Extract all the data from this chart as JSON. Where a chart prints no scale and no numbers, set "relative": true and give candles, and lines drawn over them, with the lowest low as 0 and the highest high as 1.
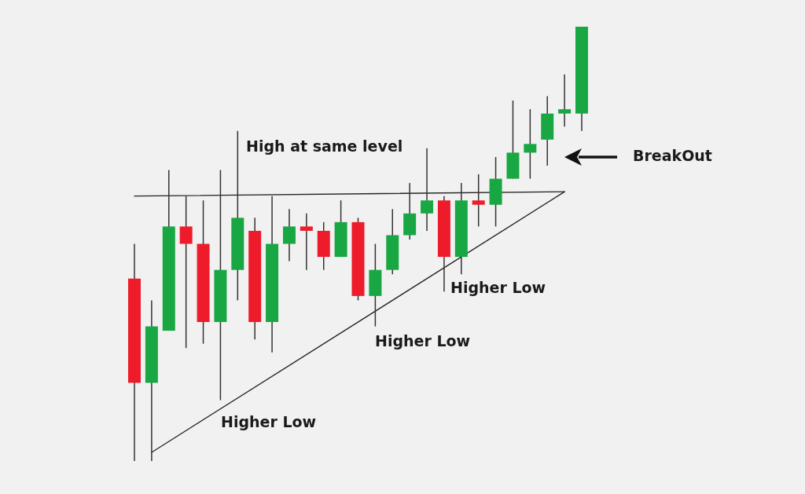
{
  "chart_data": {
    "type": "candlestick",
    "relative": true,
    "categories": [
      null,
      null,
      null,
      null,
      null,
      null,
      null,
      null,
      null,
      null,
      null,
      null,
      null,
      null,
      null,
      null,
      null,
      null,
      null,
      null,
      null,
      null,
      null,
      null,
      null,
      null,
      null
    ],
    "ohlc": [
      [
        0.42,
        0.5,
        0.0,
        0.18
      ],
      [
        0.18,
        0.37,
        0.0,
        0.31
      ],
      [
        0.3,
        0.67,
        0.3,
        0.54
      ],
      [
        0.54,
        0.61,
        0.26,
        0.5
      ],
      [
        0.5,
        0.6,
        0.27,
        0.32
      ],
      [
        0.32,
        0.67,
        0.14,
        0.44
      ],
      [
        0.44,
        0.76,
        0.37,
        0.56
      ],
      [
        0.53,
        0.56,
        0.28,
        0.32
      ],
      [
        0.32,
        0.61,
        0.25,
        0.5
      ],
      [
        0.5,
        0.58,
        0.46,
        0.54
      ],
      [
        0.54,
        0.57,
        0.44,
        0.53
      ],
      [
        0.53,
        0.55,
        0.44,
        0.47
      ],
      [
        0.47,
        0.6,
        0.47,
        0.55
      ],
      [
        0.55,
        0.56,
        0.37,
        0.38
      ],
      [
        0.38,
        0.5,
        0.31,
        0.44
      ],
      [
        0.44,
        0.58,
        0.43,
        0.52
      ],
      [
        0.52,
        0.64,
        0.51,
        0.57
      ],
      [
        0.57,
        0.72,
        0.53,
        0.6
      ],
      [
        0.6,
        0.61,
        0.39,
        0.47
      ],
      [
        0.47,
        0.64,
        0.43,
        0.6
      ],
      [
        0.6,
        0.66,
        0.54,
        0.59
      ],
      [
        0.59,
        0.7,
        0.54,
        0.65
      ],
      [
        0.65,
        0.83,
        0.65,
        0.71
      ],
      [
        0.71,
        0.81,
        0.65,
        0.73
      ],
      [
        0.74,
        0.84,
        0.68,
        0.8
      ],
      [
        0.8,
        0.89,
        0.77,
        0.81
      ],
      [
        0.8,
        1.0,
        0.76,
        1.0
      ]
    ],
    "colors": [
      "#ee1c2b",
      "#19a744",
      "#19a744",
      "#ee1c2b",
      "#ee1c2b",
      "#19a744",
      "#19a744",
      "#ee1c2b",
      "#19a744",
      "#19a744",
      "#ee1c2b",
      "#ee1c2b",
      "#19a744",
      "#ee1c2b",
      "#19a744",
      "#19a744",
      "#19a744",
      "#19a744",
      "#ee1c2b",
      "#19a744",
      "#ee1c2b",
      "#19a744",
      "#19a744",
      "#19a744",
      "#19a744",
      "#19a744",
      "#19a744"
    ],
    "series": [
      {
        "type": "line",
        "values": [
          0.61,
          null,
          null,
          null,
          null,
          null,
          null,
          null,
          null,
          null,
          null,
          null,
          null,
          null,
          null,
          null,
          null,
          null,
          null,
          null,
          null,
          null,
          null,
          null,
          null,
          0.62,
          null
        ],
        "color": "#222222"
      },
      {
        "type": "line",
        "values": [
          null,
          0.02,
          null,
          null,
          null,
          null,
          null,
          null,
          null,
          null,
          null,
          null,
          null,
          null,
          null,
          null,
          null,
          null,
          null,
          null,
          null,
          null,
          null,
          null,
          null,
          0.62,
          null
        ],
        "color": "#222222"
      }
    ],
    "annotations": [
      "High at same level",
      "Higher Low",
      "Higher Low",
      "Higher Low",
      "BreakOut"
    ]
  }
}
